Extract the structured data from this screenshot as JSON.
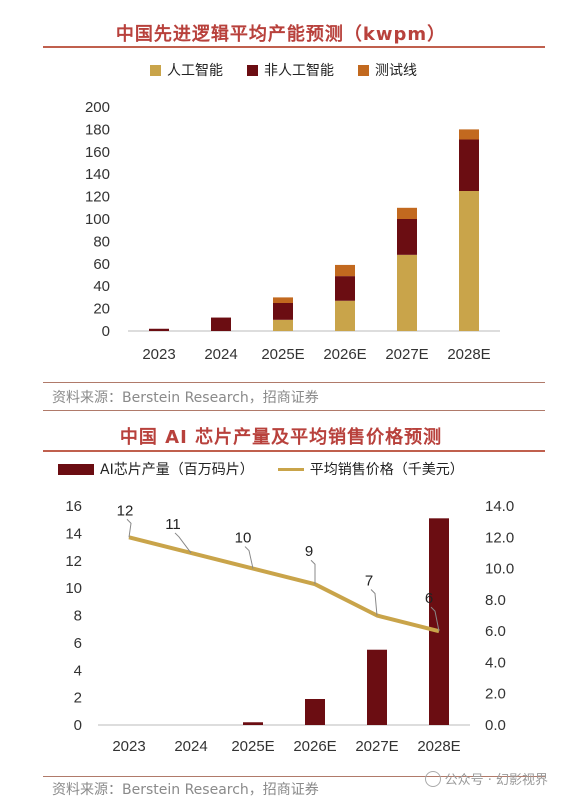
{
  "chart_data": [
    {
      "type": "bar",
      "stacked": true,
      "title": "中国先进逻辑平均产能预测（kwpm）",
      "categories": [
        "2023",
        "2024",
        "2025E",
        "2026E",
        "2027E",
        "2028E"
      ],
      "series": [
        {
          "name": "人工智能",
          "color": "#c9a44a",
          "values": [
            0,
            0,
            10,
            27,
            68,
            125
          ]
        },
        {
          "name": "非人工智能",
          "color": "#6b0d12",
          "values": [
            2,
            12,
            15,
            22,
            32,
            46
          ]
        },
        {
          "name": "测试线",
          "color": "#c2691f",
          "values": [
            0,
            0,
            5,
            10,
            10,
            9
          ]
        }
      ],
      "ylim": [
        0,
        200
      ],
      "yticks": [
        0,
        20,
        40,
        60,
        80,
        100,
        120,
        140,
        160,
        180,
        200
      ],
      "legend": "top",
      "grid": false,
      "source": "资料来源：Berstein Research，招商证券"
    },
    {
      "type": "bar+line",
      "title": "中国 AI 芯片产量及平均销售价格预测",
      "categories": [
        "2023",
        "2024",
        "2025E",
        "2026E",
        "2027E",
        "2028E"
      ],
      "series": [
        {
          "name": "AI芯片产量（百万码片）",
          "type": "bar",
          "axis": "left",
          "color": "#6b0d12",
          "values": [
            0,
            0,
            0.2,
            1.9,
            5.5,
            15.1
          ]
        },
        {
          "name": "平均销售价格（千美元）",
          "type": "line",
          "axis": "right",
          "color": "#c9a44a",
          "values": [
            12,
            11,
            10,
            9,
            7,
            6
          ],
          "data_labels": [
            "12",
            "11",
            "10",
            "9",
            "7",
            "6"
          ]
        }
      ],
      "ylim_left": [
        0,
        16
      ],
      "yticks_left": [
        "0",
        "2",
        "4",
        "6",
        "8",
        "10",
        "12",
        "14",
        "16"
      ],
      "ylim_right": [
        0,
        14
      ],
      "yticks_right": [
        "0.0",
        "2.0",
        "4.0",
        "6.0",
        "8.0",
        "10.0",
        "12.0",
        "14.0"
      ],
      "legend": "top",
      "grid": false,
      "source": "资料来源：Berstein Research，招商证券"
    }
  ],
  "watermark": {
    "text": "公众号 · 幻影视界",
    "icon": "wechat-icon"
  }
}
